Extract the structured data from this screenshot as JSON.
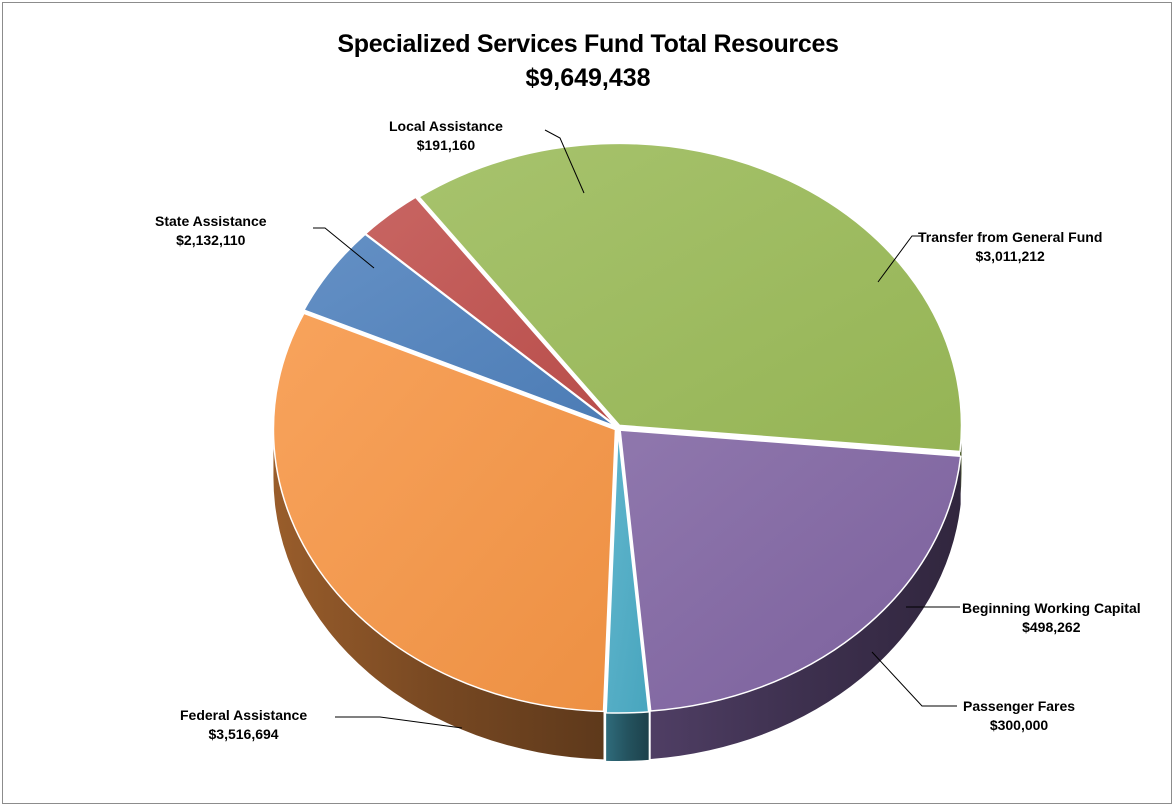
{
  "chart_data": {
    "type": "pie",
    "title": "Specialized Services Fund Total Resources",
    "subtitle": "$9,649,438",
    "slices": [
      {
        "name": "Transfer from General Fund",
        "label": "$3,011,212",
        "value": 3011212,
        "color": "#F79646"
      },
      {
        "name": "Beginning Working Capital",
        "label": "$498,262",
        "value": 498262,
        "color": "#4F81BD"
      },
      {
        "name": "Passenger Fares",
        "label": "$300,000",
        "value": 300000,
        "color": "#C0504D"
      },
      {
        "name": "Federal Assistance",
        "label": "$3,516,694",
        "value": 3516694,
        "color": "#9BBB59"
      },
      {
        "name": "State Assistance",
        "label": "$2,132,110",
        "value": 2132110,
        "color": "#8064A2"
      },
      {
        "name": "Local Assistance",
        "label": "$191,160",
        "value": 191160,
        "color": "#4BACC6"
      }
    ]
  }
}
